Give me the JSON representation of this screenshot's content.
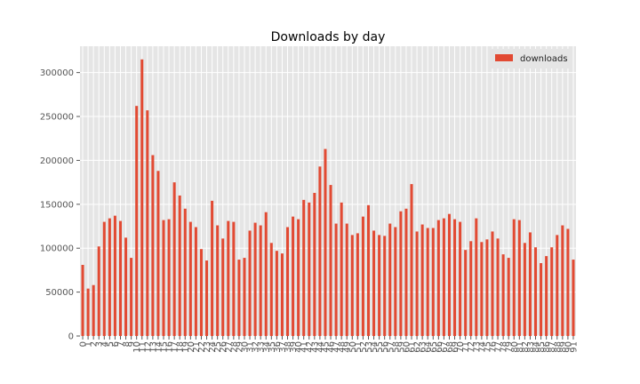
{
  "chart_data": {
    "type": "bar",
    "title": "Downloads by day",
    "xlabel": "",
    "ylabel": "",
    "ylim": [
      0,
      330000
    ],
    "yticks": [
      0,
      50000,
      100000,
      150000,
      200000,
      250000,
      300000
    ],
    "grid": true,
    "legend_position": "top-right",
    "colors": {
      "bar": "#E24A33",
      "plot_background": "#E5E5E5",
      "grid": "#FFFFFF",
      "legend_background": "#E5E5E5",
      "tick": "#555555"
    },
    "categories": [
      "0",
      "1",
      "2",
      "3",
      "4",
      "5",
      "6",
      "7",
      "8",
      "9",
      "10",
      "11",
      "12",
      "13",
      "14",
      "15",
      "16",
      "17",
      "18",
      "19",
      "20",
      "21",
      "22",
      "23",
      "24",
      "25",
      "26",
      "27",
      "28",
      "29",
      "30",
      "31",
      "32",
      "33",
      "34",
      "35",
      "36",
      "37",
      "38",
      "39",
      "40",
      "41",
      "42",
      "43",
      "44",
      "45",
      "46",
      "47",
      "48",
      "49",
      "50",
      "51",
      "52",
      "53",
      "54",
      "55",
      "56",
      "57",
      "58",
      "59",
      "60",
      "61",
      "62",
      "63",
      "64",
      "65",
      "66",
      "67",
      "68",
      "69",
      "70",
      "71",
      "72",
      "73",
      "74",
      "75",
      "76",
      "77",
      "78",
      "79",
      "80",
      "81",
      "82",
      "83",
      "84",
      "85",
      "86",
      "87",
      "88",
      "89",
      "90",
      "91"
    ],
    "series": [
      {
        "name": "downloads",
        "values": [
          81000,
          54000,
          58000,
          102000,
          130000,
          134000,
          137000,
          131000,
          112000,
          89000,
          262000,
          315000,
          257000,
          206000,
          188000,
          132000,
          133000,
          175000,
          160000,
          145000,
          130000,
          124000,
          99000,
          86000,
          154000,
          126000,
          111000,
          131000,
          130000,
          87000,
          89000,
          120000,
          129000,
          126000,
          141000,
          106000,
          97000,
          94000,
          124000,
          136000,
          133000,
          155000,
          152000,
          163000,
          193000,
          213000,
          172000,
          128000,
          152000,
          128000,
          115000,
          117000,
          136000,
          149000,
          120000,
          115000,
          114000,
          128000,
          124000,
          142000,
          145000,
          173000,
          119000,
          127000,
          123000,
          123000,
          132000,
          134000,
          139000,
          133000,
          130000,
          98000,
          108000,
          134000,
          107000,
          110000,
          119000,
          111000,
          93000,
          89000,
          133000,
          132000,
          106000,
          118000,
          101000,
          83000,
          91000,
          101000,
          115000,
          126000,
          122000,
          87000
        ]
      }
    ]
  }
}
